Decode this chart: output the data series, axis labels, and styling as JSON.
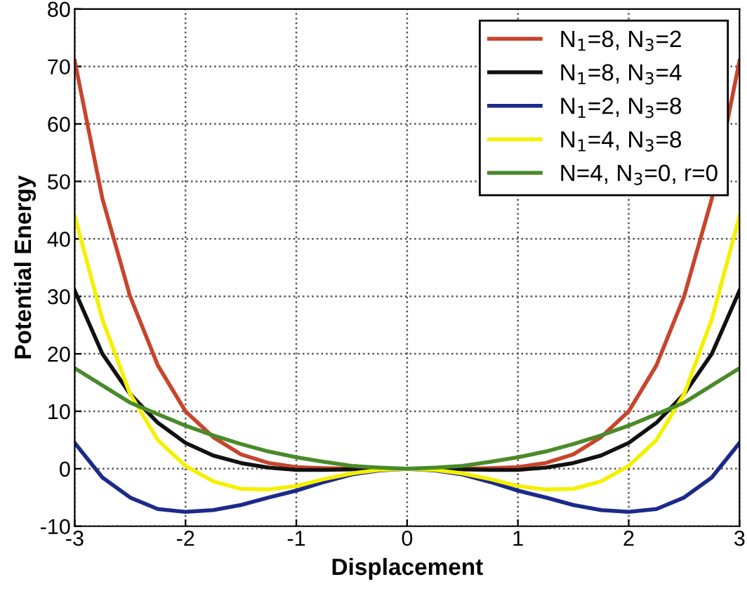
{
  "chart_data": {
    "type": "line",
    "xlabel": "Displacement",
    "ylabel": "Potential Energy",
    "x": [
      -3,
      -2.75,
      -2.5,
      -2.25,
      -2,
      -1.75,
      -1.5,
      -1.25,
      -1,
      -0.75,
      -0.5,
      -0.25,
      0,
      0.25,
      0.5,
      0.75,
      1,
      1.25,
      1.5,
      1.75,
      2,
      2.25,
      2.5,
      2.75,
      3
    ],
    "series": [
      {
        "name": "N$_{1}$=8, N$_{3}$=2",
        "color": "#c8442c",
        "values": [
          71,
          47,
          30,
          18,
          10,
          5.5,
          2.5,
          1,
          0.3,
          0.1,
          0,
          0,
          0,
          0,
          0,
          0.1,
          0.3,
          1,
          2.5,
          5.5,
          10,
          18,
          30,
          47,
          71
        ]
      },
      {
        "name": "N$_{1}$=8, N$_{3}$=4",
        "color": "#111111",
        "values": [
          31,
          20,
          13,
          8,
          4.5,
          2.3,
          1,
          0.2,
          -0.2,
          -0.2,
          -0.1,
          0,
          0,
          0,
          -0.1,
          -0.2,
          -0.2,
          0.2,
          1,
          2.3,
          4.5,
          8,
          13,
          20,
          31
        ]
      },
      {
        "name": "N$_{1}$=2, N$_{3}$=8",
        "color": "#1c2a8a",
        "values": [
          4.5,
          -1.5,
          -5,
          -7,
          -7.5,
          -7.2,
          -6.3,
          -5,
          -3.8,
          -2.3,
          -1,
          -0.3,
          0,
          -0.3,
          -1,
          -2.3,
          -3.8,
          -5,
          -6.3,
          -7.2,
          -7.5,
          -7,
          -5,
          -1.5,
          4.5
        ]
      },
      {
        "name": "N$_{1}$=4, N$_{3}$=8",
        "color": "#f5f000",
        "values": [
          44,
          26,
          13,
          5,
          0.5,
          -2.2,
          -3.5,
          -3.6,
          -3,
          -1.8,
          -0.8,
          -0.2,
          0,
          -0.2,
          -0.8,
          -1.8,
          -3,
          -3.6,
          -3.5,
          -2.2,
          0.5,
          5,
          13,
          26,
          44
        ]
      },
      {
        "name": "N=4, N$_{3}$=0, r=0",
        "color": "#4a8a2a",
        "values": [
          17.5,
          14.5,
          11.5,
          9.5,
          7.5,
          5.8,
          4.3,
          3,
          2,
          1.2,
          0.5,
          0.2,
          0,
          0.2,
          0.5,
          1.2,
          2,
          3,
          4.3,
          5.8,
          7.5,
          9.5,
          11.5,
          14.5,
          17.5
        ]
      }
    ],
    "xlim": [
      -3,
      3
    ],
    "xticks": [
      -3,
      -2,
      -1,
      0,
      1,
      2,
      3
    ],
    "ylim": [
      -10,
      80
    ],
    "yticks": [
      -10,
      0,
      10,
      20,
      30,
      40,
      50,
      60,
      70,
      80
    ],
    "grid": true,
    "legend": "top right"
  }
}
